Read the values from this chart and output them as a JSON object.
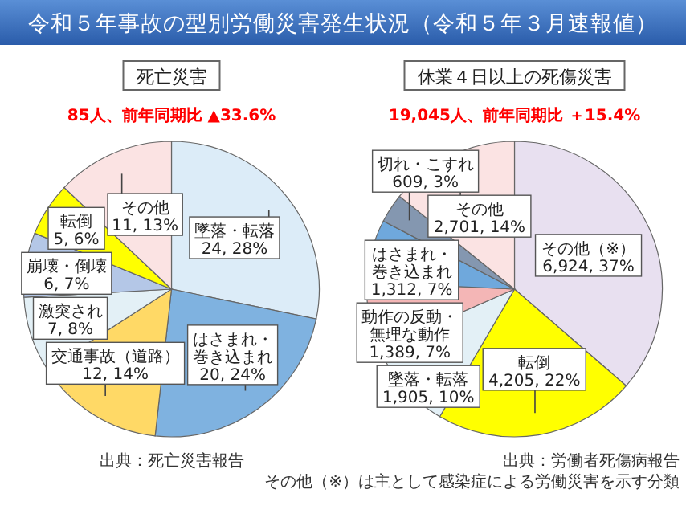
{
  "chart_data": [
    {
      "type": "other",
      "title": "令和５年事故の型別労働災害発生状況（令和５年３月速報値）"
    },
    {
      "type": "pie",
      "title": "死亡災害",
      "subtitle": "85人、前年同期比 ▲33.6%",
      "categories": [
        "墜落・転落",
        "はさまれ・巻き込まれ",
        "交通事故（道路）",
        "激突され",
        "崩壊・倒壊",
        "転倒",
        "その他"
      ],
      "values": [
        24,
        20,
        12,
        7,
        6,
        5,
        11
      ],
      "value_labels": [
        "24, 28%",
        "20, 24%",
        "12, 14%",
        "7, 8%",
        "6, 7%",
        "5, 6%",
        "11, 13%"
      ],
      "colors": [
        "#dcecf8",
        "#7fb2e0",
        "#ffd966",
        "#e3f0f6",
        "#b4c7e7",
        "#ffff00",
        "#fbe3e3"
      ],
      "annotations": [
        "出典：死亡災害報告"
      ]
    },
    {
      "type": "pie",
      "title": "休業４日以上の死傷災害",
      "subtitle": "19,045人、前年同期比 ＋15.4%",
      "categories": [
        "その他（※）",
        "転倒",
        "墜落・転落",
        "動作の反動・無理な動作",
        "はさまれ・巻き込まれ",
        "切れ・こすれ",
        "その他"
      ],
      "values": [
        6924,
        4205,
        1905,
        1389,
        1312,
        609,
        2701
      ],
      "value_labels": [
        "6,924, 37%",
        "4,205, 22%",
        "1,905, 10%",
        "1,389, 7%",
        "1,312, 7%",
        "609, 3%",
        "2,701, 14%"
      ],
      "colors": [
        "#e8e0f0",
        "#ffff00",
        "#e3f0f6",
        "#f4b6b6",
        "#6fa8dc",
        "#8497b0",
        "#fbe3e3"
      ],
      "annotations": [
        "出典：労働者死傷病報告",
        "その他（※）は主として感染症による労働災害を示す分類"
      ]
    }
  ]
}
